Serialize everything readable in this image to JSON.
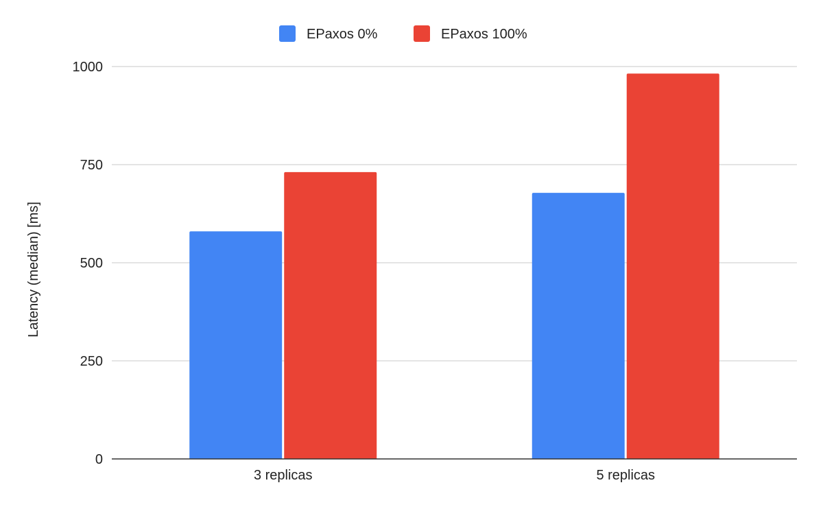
{
  "chart_data": {
    "type": "bar",
    "title": "",
    "xlabel": "",
    "ylabel": "Latency (median) [ms]",
    "categories": [
      "3 replicas",
      "5 replicas"
    ],
    "series": [
      {
        "name": "EPaxos 0%",
        "values": [
          580,
          678
        ],
        "color": "#4285f4"
      },
      {
        "name": "EPaxos 100%",
        "values": [
          731,
          982
        ],
        "color": "#ea4335"
      }
    ],
    "ylim": [
      0,
      1000
    ],
    "yticks": [
      0,
      250,
      500,
      750,
      1000
    ],
    "grid": true,
    "legend_position": "top"
  }
}
